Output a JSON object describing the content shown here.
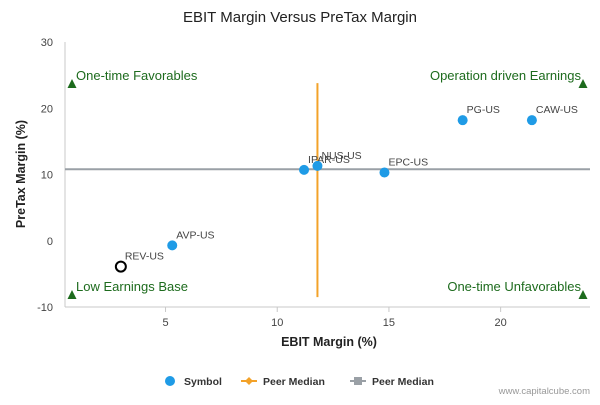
{
  "chart_data": {
    "type": "scatter",
    "title": "EBIT Margin Versus PreTax Margin",
    "xlabel": "EBIT Margin (%)",
    "ylabel": "PreTax Margin (%)",
    "xlim": [
      0.5,
      24.0
    ],
    "ylim": [
      -10,
      30
    ],
    "x_ticks": [
      5,
      10,
      15,
      20
    ],
    "y_ticks": [
      -10,
      0,
      10,
      20,
      30
    ],
    "grid": false,
    "points": [
      {
        "label": "PG-US",
        "x": 18.3,
        "y": 18.2,
        "highlight": false
      },
      {
        "label": "CAW-US",
        "x": 21.4,
        "y": 18.2,
        "highlight": false
      },
      {
        "label": "IPAR-US",
        "x": 11.2,
        "y": 10.7,
        "highlight": false
      },
      {
        "label": "NUS-US",
        "x": 11.8,
        "y": 11.3,
        "highlight": false
      },
      {
        "label": "EPC-US",
        "x": 14.8,
        "y": 10.3,
        "highlight": false
      },
      {
        "label": "AVP-US",
        "x": 5.3,
        "y": -0.7,
        "highlight": false
      },
      {
        "label": "REV-US",
        "x": 3.0,
        "y": -3.9,
        "highlight": true
      }
    ],
    "peer_median_x": 11.8,
    "peer_median_y": 10.8,
    "peer_median_y_range": [
      -8.5,
      23.8
    ],
    "quadrants": {
      "top_left": "One-time Favorables",
      "top_right": "Operation driven Earnings",
      "bottom_left": "Low Earnings Base",
      "bottom_right": "One-time Unfavorables"
    },
    "legend": [
      {
        "label": "Symbol",
        "marker": "circle",
        "color": "#1f9be6"
      },
      {
        "label": "Peer Median",
        "marker": "diamond-line",
        "color": "#f3a229"
      },
      {
        "label": "Peer Median",
        "marker": "square-line",
        "color": "#9aa0a6"
      }
    ],
    "legend_position": "bottom-center",
    "colors": {
      "point": "#1f9be6",
      "highlight_stroke": "#000000",
      "vertical_median": "#f3a229",
      "horizontal_median": "#9aa0a6",
      "quadrant_text": "#1d6b1d",
      "arrow": "#1d6b1d"
    }
  },
  "credit": "www.capitalcube.com"
}
